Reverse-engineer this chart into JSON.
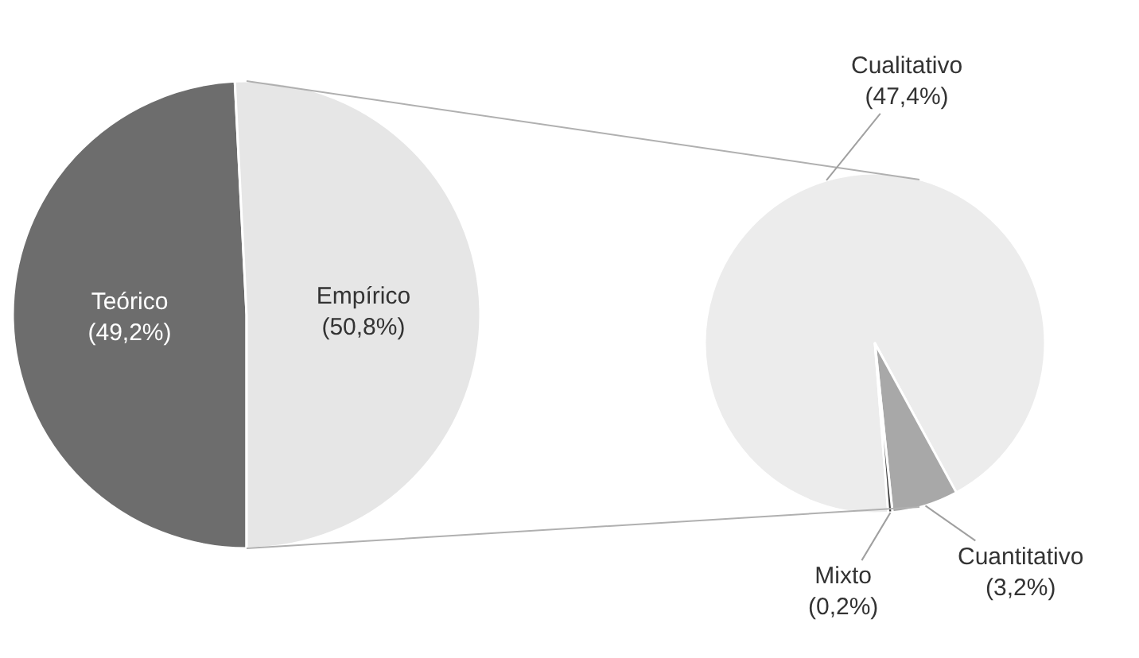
{
  "chart_data": [
    {
      "type": "pie",
      "categories": [
        "Teórico",
        "Empírico"
      ],
      "values": [
        49.2,
        50.8
      ],
      "colors": [
        "#6d6d6d",
        "#e6e6e6"
      ],
      "value_labels": [
        "(49,2%)",
        "(50,8%)"
      ]
    },
    {
      "type": "pie",
      "categories": [
        "Cualitativo",
        "Cuantitativo",
        "Mixto"
      ],
      "values": [
        47.4,
        3.2,
        0.2
      ],
      "colors": [
        "#ececec",
        "#a8a8a8",
        "#3c3c3c"
      ],
      "value_labels": [
        "(47,4%)",
        "(3,2%)",
        "(0,2%)"
      ]
    }
  ]
}
